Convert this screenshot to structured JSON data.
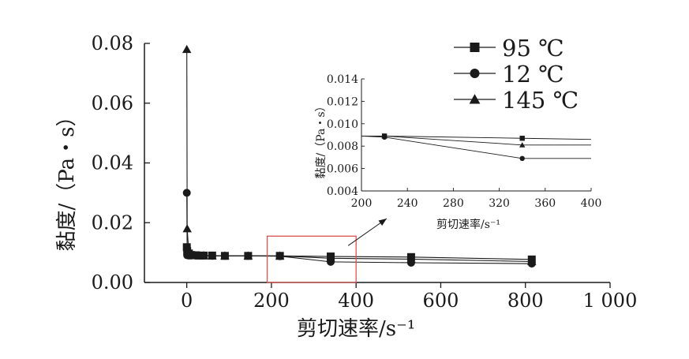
{
  "chart_data": [
    {
      "type": "line",
      "role": "main",
      "xlabel": "剪切速率/s⁻¹",
      "ylabel": "黏度/（Pa・s）",
      "xlim": [
        -100,
        1000
      ],
      "ylim": [
        0,
        0.08
      ],
      "x_ticks": [
        0,
        200,
        400,
        600,
        800,
        1000
      ],
      "x_tick_labels": [
        "0",
        "200",
        "400",
        "600",
        "800",
        "1 000"
      ],
      "y_ticks": [
        0,
        0.02,
        0.04,
        0.06,
        0.08
      ],
      "y_tick_labels": [
        "0.00",
        "0.02",
        "0.04",
        "0.06",
        "0.08"
      ],
      "grid": false,
      "legend_position": "top-right",
      "series": [
        {
          "name": "95 ℃",
          "marker": "square",
          "x": [
            0.1,
            1,
            5,
            10,
            20,
            30,
            40,
            60,
            90,
            145,
            220,
            340,
            530,
            815
          ],
          "y": [
            0.0118,
            0.0105,
            0.0097,
            0.0092,
            0.0091,
            0.009,
            0.009,
            0.009,
            0.0089,
            0.0089,
            0.0089,
            0.0087,
            0.0085,
            0.0077
          ]
        },
        {
          "name": "12 ℃",
          "marker": "circle",
          "x": [
            0.1,
            1,
            5,
            10,
            20,
            30,
            40,
            60,
            90,
            145,
            220,
            340,
            530,
            815
          ],
          "y": [
            0.03,
            0.0091,
            0.009,
            0.009,
            0.009,
            0.009,
            0.009,
            0.0089,
            0.0089,
            0.0089,
            0.0088,
            0.0069,
            0.0066,
            0.0063
          ]
        },
        {
          "name": "145 ℃",
          "marker": "triangle",
          "x": [
            0.1,
            1,
            5,
            10,
            20,
            30,
            40,
            60,
            90,
            145,
            220,
            340,
            530,
            815
          ],
          "y": [
            0.078,
            0.018,
            0.0095,
            0.0092,
            0.009,
            0.009,
            0.009,
            0.0089,
            0.0089,
            0.0089,
            0.0089,
            0.0081,
            0.0078,
            0.007
          ]
        }
      ],
      "highlight_box": {
        "x": [
          190,
          400
        ],
        "y": [
          0,
          0.0155
        ],
        "color": "#d9534f"
      }
    },
    {
      "type": "line",
      "role": "inset",
      "xlabel": "剪切速率/s⁻¹",
      "ylabel": "黏度/（Pa・s）",
      "xlim": [
        200,
        400
      ],
      "ylim": [
        0.004,
        0.014
      ],
      "x_ticks": [
        200,
        240,
        280,
        320,
        360,
        400
      ],
      "x_tick_labels": [
        "200",
        "240",
        "280",
        "320",
        "360",
        "400"
      ],
      "y_ticks": [
        0.004,
        0.006,
        0.008,
        0.01,
        0.012,
        0.014
      ],
      "y_tick_labels": [
        "0.004",
        "0.006",
        "0.008",
        "0.010",
        "0.012",
        "0.014"
      ],
      "grid": false,
      "series": [
        {
          "name": "95 ℃",
          "marker": "square",
          "x": [
            200,
            220,
            340,
            400
          ],
          "y": [
            0.0089,
            0.0089,
            0.0087,
            0.0086
          ]
        },
        {
          "name": "12 ℃",
          "marker": "circle",
          "x": [
            200,
            220,
            340,
            400
          ],
          "y": [
            0.0089,
            0.0088,
            0.0069,
            0.0069
          ]
        },
        {
          "name": "145 ℃",
          "marker": "triangle",
          "x": [
            200,
            220,
            340,
            400
          ],
          "y": [
            0.0089,
            0.0089,
            0.0081,
            0.0081
          ]
        }
      ],
      "marker_x": [
        220,
        340
      ]
    }
  ]
}
